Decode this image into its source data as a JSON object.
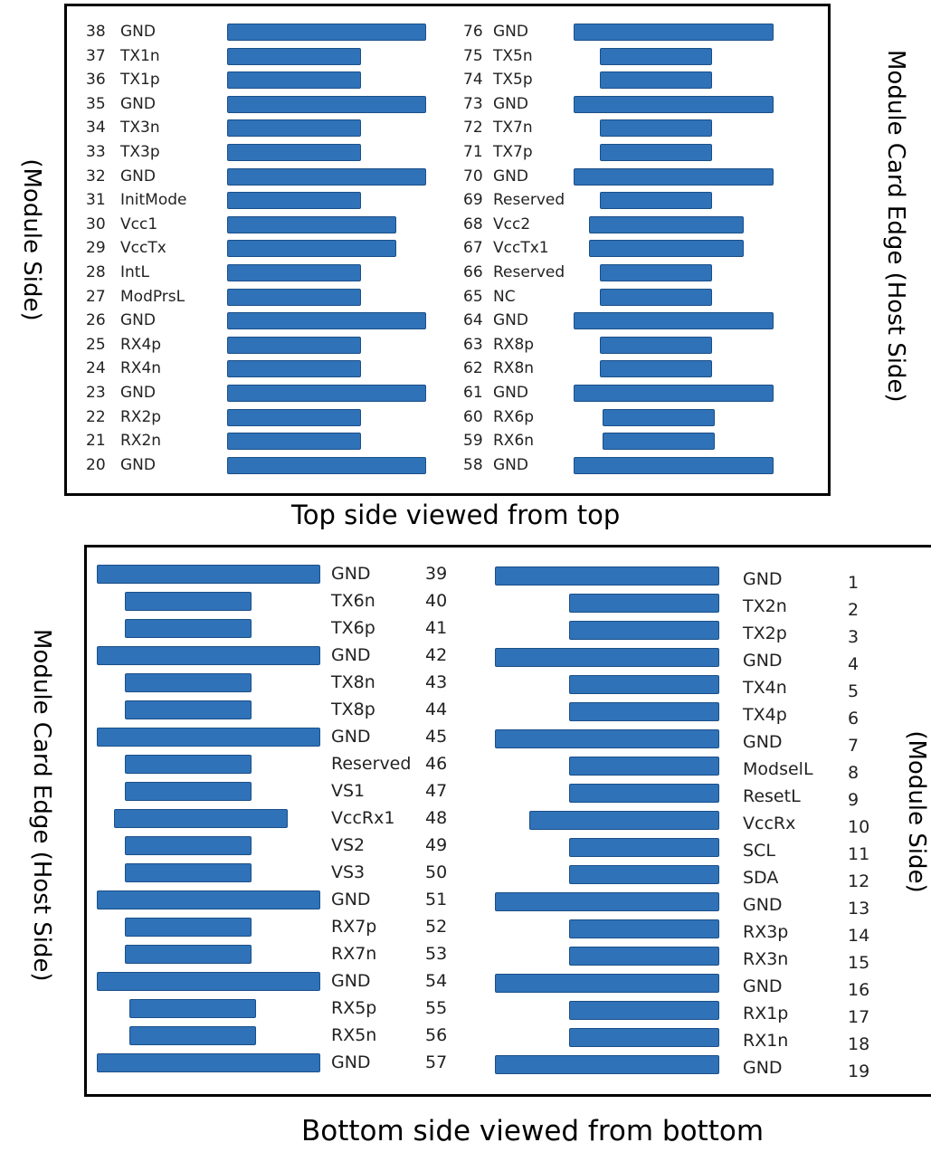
{
  "top": {
    "caption": "Top side viewed from top",
    "label_left": "(Module Side)",
    "label_right": "Module Card Edge (Host Side)",
    "left_pins": [
      {
        "num": "38",
        "name": "GND"
      },
      {
        "num": "37",
        "name": "TX1n"
      },
      {
        "num": "36",
        "name": "TX1p"
      },
      {
        "num": "35",
        "name": "GND"
      },
      {
        "num": "34",
        "name": "TX3n"
      },
      {
        "num": "33",
        "name": "TX3p"
      },
      {
        "num": "32",
        "name": "GND"
      },
      {
        "num": "31",
        "name": "InitMode"
      },
      {
        "num": "30",
        "name": "Vcc1"
      },
      {
        "num": "29",
        "name": "VccTx"
      },
      {
        "num": "28",
        "name": "IntL"
      },
      {
        "num": "27",
        "name": "ModPrsL"
      },
      {
        "num": "26",
        "name": "GND"
      },
      {
        "num": "25",
        "name": "RX4p"
      },
      {
        "num": "24",
        "name": "RX4n"
      },
      {
        "num": "23",
        "name": "GND"
      },
      {
        "num": "22",
        "name": "RX2p"
      },
      {
        "num": "21",
        "name": "RX2n"
      },
      {
        "num": "20",
        "name": "GND"
      }
    ],
    "right_pins": [
      {
        "num": "76",
        "name": "GND"
      },
      {
        "num": "75",
        "name": "TX5n"
      },
      {
        "num": "74",
        "name": "TX5p"
      },
      {
        "num": "73",
        "name": "GND"
      },
      {
        "num": "72",
        "name": "TX7n"
      },
      {
        "num": "71",
        "name": "TX7p"
      },
      {
        "num": "70",
        "name": "GND"
      },
      {
        "num": "69",
        "name": "Reserved"
      },
      {
        "num": "68",
        "name": "Vcc2"
      },
      {
        "num": "67",
        "name": "VccTx1"
      },
      {
        "num": "66",
        "name": "Reserved"
      },
      {
        "num": "65",
        "name": "NC"
      },
      {
        "num": "64",
        "name": "GND"
      },
      {
        "num": "63",
        "name": "RX8p"
      },
      {
        "num": "62",
        "name": "RX8n"
      },
      {
        "num": "61",
        "name": "GND"
      },
      {
        "num": "60",
        "name": "RX6p"
      },
      {
        "num": "59",
        "name": "RX6n"
      },
      {
        "num": "58",
        "name": "GND"
      }
    ]
  },
  "bottom": {
    "caption": "Bottom side viewed from bottom",
    "label_left": "Module Card Edge (Host Side)",
    "label_right": "(Module Side)",
    "left_pins": [
      {
        "num": "39",
        "name": "GND"
      },
      {
        "num": "40",
        "name": "TX6n"
      },
      {
        "num": "41",
        "name": "TX6p"
      },
      {
        "num": "42",
        "name": "GND"
      },
      {
        "num": "43",
        "name": "TX8n"
      },
      {
        "num": "44",
        "name": "TX8p"
      },
      {
        "num": "45",
        "name": "GND"
      },
      {
        "num": "46",
        "name": "Reserved"
      },
      {
        "num": "47",
        "name": "VS1"
      },
      {
        "num": "48",
        "name": "VccRx1"
      },
      {
        "num": "49",
        "name": "VS2"
      },
      {
        "num": "50",
        "name": "VS3"
      },
      {
        "num": "51",
        "name": "GND"
      },
      {
        "num": "52",
        "name": "RX7p"
      },
      {
        "num": "53",
        "name": "RX7n"
      },
      {
        "num": "54",
        "name": "GND"
      },
      {
        "num": "55",
        "name": "RX5p"
      },
      {
        "num": "56",
        "name": "RX5n"
      },
      {
        "num": "57",
        "name": "GND"
      }
    ],
    "right_pins": [
      {
        "num": "1",
        "name": "GND"
      },
      {
        "num": "2",
        "name": "TX2n"
      },
      {
        "num": "3",
        "name": "TX2p"
      },
      {
        "num": "4",
        "name": "GND"
      },
      {
        "num": "5",
        "name": "TX4n"
      },
      {
        "num": "6",
        "name": "TX4p"
      },
      {
        "num": "7",
        "name": "GND"
      },
      {
        "num": "8",
        "name": "ModselL"
      },
      {
        "num": "9",
        "name": "ResetL"
      },
      {
        "num": "10",
        "name": "VccRx"
      },
      {
        "num": "11",
        "name": "SCL"
      },
      {
        "num": "12",
        "name": "SDA"
      },
      {
        "num": "13",
        "name": "GND"
      },
      {
        "num": "14",
        "name": "RX3p"
      },
      {
        "num": "15",
        "name": "RX3n"
      },
      {
        "num": "16",
        "name": "GND"
      },
      {
        "num": "17",
        "name": "RX1p"
      },
      {
        "num": "18",
        "name": "RX1n"
      },
      {
        "num": "19",
        "name": "GND"
      }
    ]
  },
  "colors": {
    "pin_fill": "#2f72b8",
    "pin_border": "#1b4f87"
  }
}
